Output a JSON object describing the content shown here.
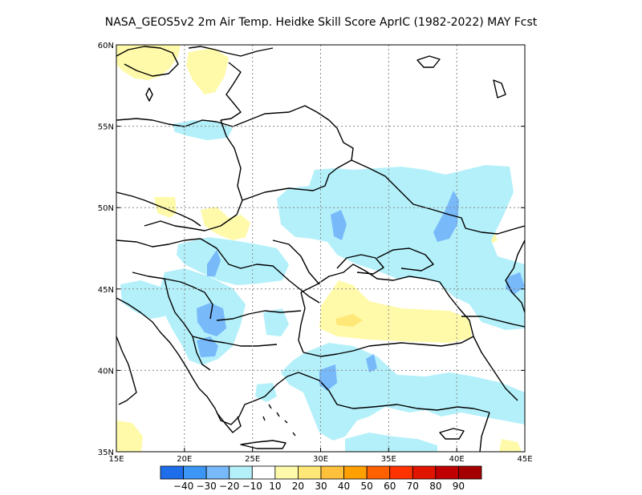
{
  "title": "NASA_GEOS5v2  2m Air Temp. Heidke Skill Score AprIC (1982-2022) MAY Fcst",
  "map": {
    "lon_range": [
      15,
      45
    ],
    "lat_range": [
      35,
      60
    ],
    "x_ticks": [
      "15E",
      "20E",
      "25E",
      "30E",
      "35E",
      "40E",
      "45E"
    ],
    "y_ticks": [
      "35N",
      "40N",
      "45N",
      "50N",
      "55N",
      "60N"
    ],
    "grid": "dotted"
  },
  "colorbar": {
    "labels": [
      "-40",
      "-30",
      "-20",
      "-10",
      "10",
      "20",
      "30",
      "40",
      "50",
      "60",
      "70",
      "80",
      "90"
    ],
    "colors": [
      "#1e6eeb",
      "#3c96f5",
      "#78b9fa",
      "#b4f0fa",
      "#ffffff",
      "#fffaaa",
      "#ffe878",
      "#ffc03c",
      "#ffa000",
      "#ff6000",
      "#ff3200",
      "#e11400",
      "#c00000",
      "#a50000"
    ]
  },
  "legend_colors": {
    "light_blue": "#b4f0fa",
    "mid_blue": "#78b9fa",
    "light_yellow": "#fffaaa"
  }
}
